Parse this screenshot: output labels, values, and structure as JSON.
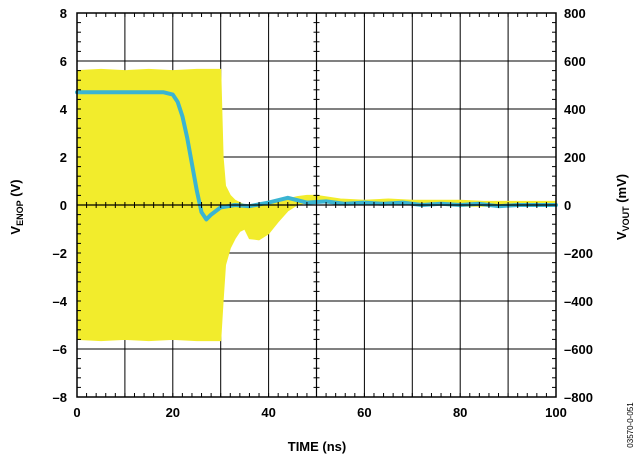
{
  "chart_data": {
    "type": "line",
    "xlabel": "TIME (ns)",
    "xlim": [
      0,
      100
    ],
    "x_ticks": [
      "0",
      "20",
      "40",
      "60",
      "80",
      "100"
    ],
    "ylabel_left": {
      "main": "V",
      "subscript": "ENOP",
      "suffix": " (V)"
    },
    "ylim_left": [
      -8,
      8
    ],
    "y_ticks_left": [
      "8",
      "6",
      "4",
      "2",
      "0",
      "–2",
      "–4",
      "–6",
      "–8"
    ],
    "ylabel_right": {
      "main": "V",
      "subscript": "VOUT",
      "suffix": " (mV)"
    },
    "ylim_right": [
      -800,
      800
    ],
    "y_ticks_right": [
      "800",
      "600",
      "400",
      "200",
      "0",
      "–200",
      "–400",
      "–600",
      "–800"
    ],
    "grid": true,
    "figure_id": "03570-0-051",
    "series": [
      {
        "axis": "right",
        "unit": "mV",
        "color": "#f2ec2c",
        "style": "filled envelope (oscillating signal)",
        "x": [
          0,
          5,
          10,
          15,
          20,
          25,
          28,
          30,
          30.5,
          31,
          32,
          33,
          34,
          35,
          36,
          38,
          40,
          42,
          44,
          46,
          48,
          50,
          55,
          60,
          65,
          70,
          75,
          80,
          85,
          90,
          95,
          100
        ],
        "upper": [
          560,
          565,
          560,
          565,
          560,
          565,
          565,
          565,
          200,
          80,
          40,
          20,
          10,
          0,
          -5,
          0,
          10,
          15,
          25,
          35,
          40,
          40,
          25,
          20,
          25,
          20,
          20,
          20,
          15,
          15,
          15,
          15
        ],
        "lower": [
          -560,
          -565,
          -560,
          -565,
          -560,
          -565,
          -565,
          -565,
          -400,
          -250,
          -180,
          -140,
          -110,
          -100,
          -140,
          -145,
          -120,
          -70,
          -25,
          0,
          10,
          10,
          5,
          0,
          5,
          0,
          0,
          -5,
          -5,
          -5,
          -5,
          -5
        ]
      },
      {
        "axis": "left",
        "unit": "V",
        "color": "#3ab4d2",
        "style": "line",
        "x": [
          0,
          5,
          10,
          15,
          18,
          20,
          21,
          22,
          23,
          24,
          25,
          26,
          27,
          28,
          30,
          33,
          36,
          40,
          44,
          48,
          52,
          56,
          60,
          64,
          68,
          72,
          76,
          80,
          84,
          88,
          92,
          96,
          100
        ],
        "y": [
          4.7,
          4.7,
          4.7,
          4.7,
          4.7,
          4.6,
          4.3,
          3.7,
          2.8,
          1.7,
          0.6,
          -0.3,
          -0.6,
          -0.4,
          -0.1,
          0.0,
          -0.05,
          0.1,
          0.3,
          0.1,
          0.15,
          0.05,
          0.1,
          0.05,
          0.1,
          0.0,
          0.05,
          0.0,
          0.05,
          -0.05,
          0.0,
          0.0,
          0.0
        ]
      }
    ]
  }
}
